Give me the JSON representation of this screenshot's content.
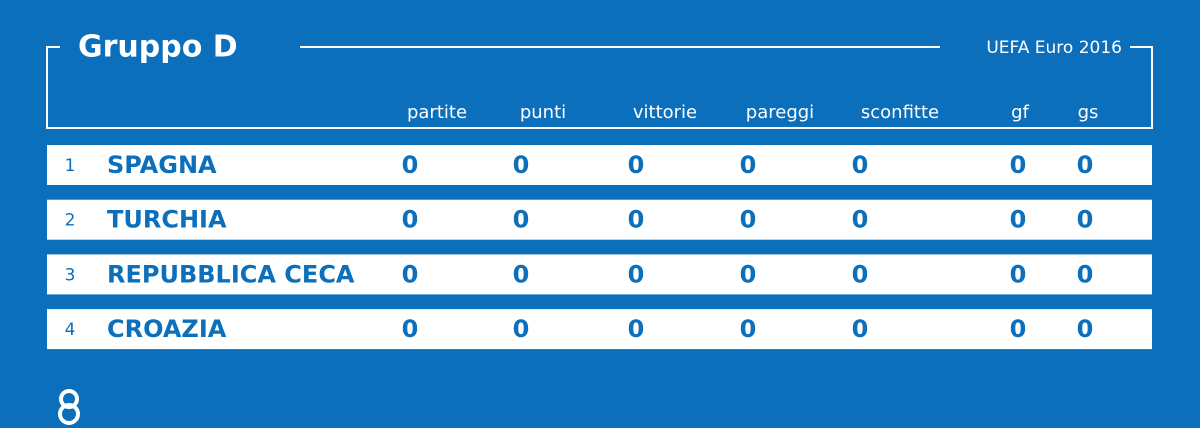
{
  "header": {
    "title": "Gruppo D",
    "subtitle": "UEFA Euro 2016"
  },
  "table": {
    "columns": [
      "partite",
      "punti",
      "vittorie",
      "pareggi",
      "sconfitte",
      "gf",
      "gs"
    ],
    "rows": [
      [
        1,
        "SPAGNA",
        0,
        0,
        0,
        0,
        0,
        0,
        0
      ],
      [
        2,
        "TURCHIA",
        0,
        0,
        0,
        0,
        0,
        0,
        0
      ],
      [
        3,
        "REPUBBLICA CECA",
        0,
        0,
        0,
        0,
        0,
        0,
        0
      ],
      [
        4,
        "CROAZIA",
        0,
        0,
        0,
        0,
        0,
        0,
        0
      ]
    ]
  }
}
